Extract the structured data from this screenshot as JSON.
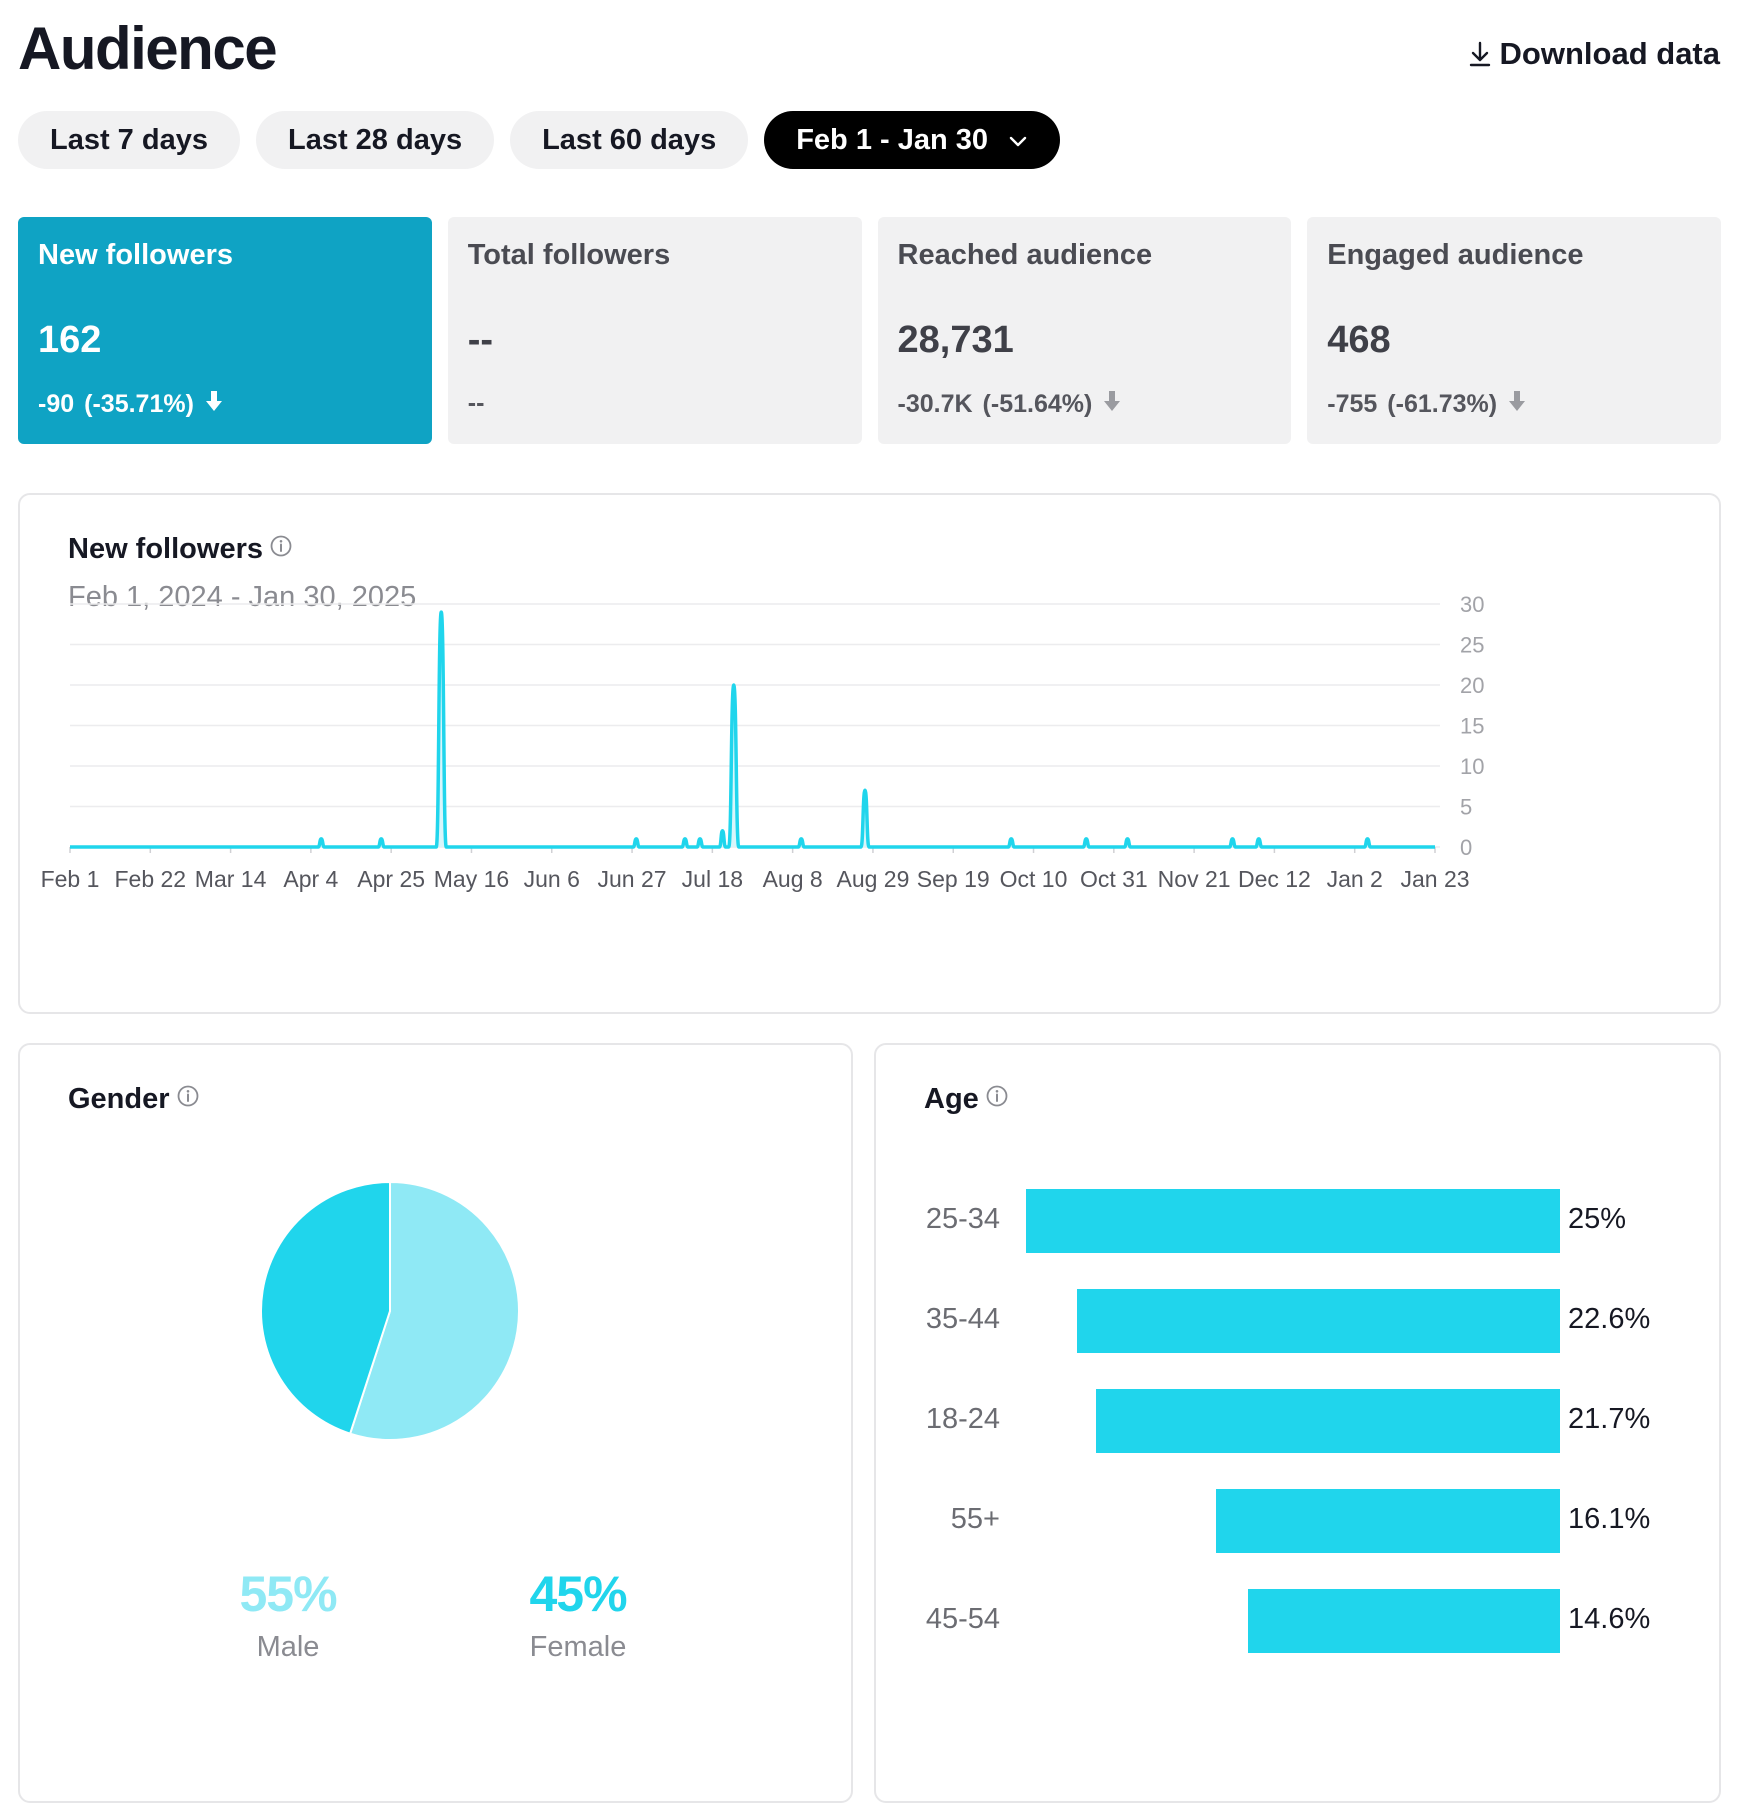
{
  "header": {
    "title": "Audience",
    "download_label": "Download data"
  },
  "ranges": [
    {
      "label": "Last 7 days"
    },
    {
      "label": "Last 28 days"
    },
    {
      "label": "Last 60 days"
    },
    {
      "label": "Feb 1 - Jan 30",
      "selected": true
    }
  ],
  "kpis": [
    {
      "label": "New followers",
      "value": "162",
      "delta": "-90",
      "pct": "(-35.71%)",
      "active": true
    },
    {
      "label": "Total followers",
      "value": "--",
      "delta": "--",
      "pct": ""
    },
    {
      "label": "Reached audience",
      "value": "28,731",
      "delta": "-30.7K",
      "pct": "(-51.64%)"
    },
    {
      "label": "Engaged audience",
      "value": "468",
      "delta": "-755",
      "pct": "(-61.73%)"
    }
  ],
  "followers_card": {
    "title": "New followers",
    "subtitle": "Feb 1, 2024 - Jan 30, 2025"
  },
  "gender_card": {
    "title": "Gender",
    "male": {
      "pct": "55%",
      "label": "Male"
    },
    "female": {
      "pct": "45%",
      "label": "Female"
    }
  },
  "age_card": {
    "title": "Age"
  },
  "colors": {
    "accent": "#20d5ec",
    "accent_light": "#8fe9f5",
    "active_card": "#0fa3c4"
  },
  "chart_data": [
    {
      "type": "area",
      "title": "New followers",
      "subtitle": "Feb 1, 2024 - Jan 30, 2025",
      "x_start": "2024-02-01",
      "x_days": 364,
      "xticks": [
        "Feb 1",
        "Feb 22",
        "Mar 14",
        "Apr 4",
        "Apr 25",
        "May 16",
        "Jun 6",
        "Jun 27",
        "Jul 18",
        "Aug 8",
        "Aug 29",
        "Sep 19",
        "Oct 10",
        "Oct 31",
        "Nov 21",
        "Dec 12",
        "Jan 2",
        "Jan 23"
      ],
      "yticks": [
        0,
        5,
        10,
        15,
        20,
        25,
        30
      ],
      "ylim": [
        0,
        30
      ],
      "series": [
        {
          "name": "New followers",
          "points": [
            {
              "day": 67,
              "value": 1
            },
            {
              "day": 83,
              "value": 1
            },
            {
              "day": 99,
              "value": 29
            },
            {
              "day": 151,
              "value": 1
            },
            {
              "day": 164,
              "value": 1
            },
            {
              "day": 168,
              "value": 1
            },
            {
              "day": 174,
              "value": 2
            },
            {
              "day": 177,
              "value": 20
            },
            {
              "day": 195,
              "value": 1
            },
            {
              "day": 212,
              "value": 7
            },
            {
              "day": 251,
              "value": 1
            },
            {
              "day": 271,
              "value": 1
            },
            {
              "day": 282,
              "value": 1
            },
            {
              "day": 310,
              "value": 1
            },
            {
              "day": 317,
              "value": 1
            },
            {
              "day": 346,
              "value": 1
            }
          ]
        }
      ]
    },
    {
      "type": "pie",
      "title": "Gender",
      "categories": [
        "Male",
        "Female"
      ],
      "values": [
        55,
        45
      ]
    },
    {
      "type": "bar",
      "orientation": "horizontal",
      "title": "Age",
      "categories": [
        "25-34",
        "35-44",
        "18-24",
        "55+",
        "45-54"
      ],
      "values": [
        25,
        22.6,
        21.7,
        16.1,
        14.6
      ],
      "labels": [
        "25%",
        "22.6%",
        "21.7%",
        "16.1%",
        "14.6%"
      ]
    }
  ]
}
